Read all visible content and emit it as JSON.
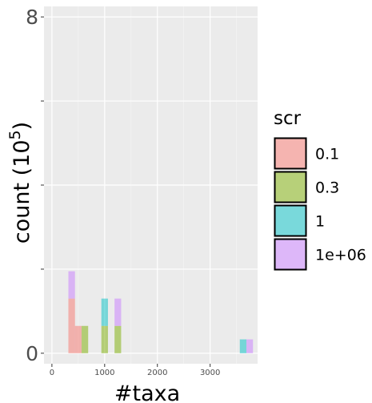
{
  "chart_data": {
    "type": "bar",
    "stacked": true,
    "xlabel": "#taxa",
    "ylabel_prefix": "count (10",
    "ylabel_exponent": "5",
    "ylabel_suffix": ")",
    "xlim": [
      -150,
      3900
    ],
    "ylim": [
      -0.25,
      8.25
    ],
    "x_ticks": [
      0,
      1000,
      2000,
      3000
    ],
    "x_tick_labels": [
      "0",
      "1000",
      "2000",
      "3000"
    ],
    "y_ticks": [
      0,
      8
    ],
    "y_tick_labels": [
      "0",
      "8"
    ],
    "y_minor_ticks": [
      2,
      4,
      6
    ],
    "grid": true,
    "bin_width": 125,
    "legend": {
      "title": "scr",
      "position": "right",
      "labels": [
        "0.1",
        "0.3",
        "1",
        "1e+06"
      ]
    },
    "series": [
      {
        "name": "0.1",
        "color": "#F8766D",
        "bins": [
          {
            "x": 375,
            "value": 1.3
          },
          {
            "x": 500,
            "value": 0.65
          }
        ]
      },
      {
        "name": "0.3",
        "color": "#7CAE00",
        "bins": [
          {
            "x": 625,
            "value": 0.65
          },
          {
            "x": 1000,
            "value": 0.65
          },
          {
            "x": 1250,
            "value": 0.65
          }
        ]
      },
      {
        "name": "1",
        "color": "#00BFC4",
        "bins": [
          {
            "x": 1000,
            "value": 0.65
          },
          {
            "x": 3625,
            "value": 0.33
          }
        ]
      },
      {
        "name": "1e+06",
        "color": "#C77CFF",
        "bins": [
          {
            "x": 375,
            "value": 0.65
          },
          {
            "x": 1250,
            "value": 0.65
          },
          {
            "x": 3750,
            "value": 0.33
          }
        ]
      }
    ]
  }
}
